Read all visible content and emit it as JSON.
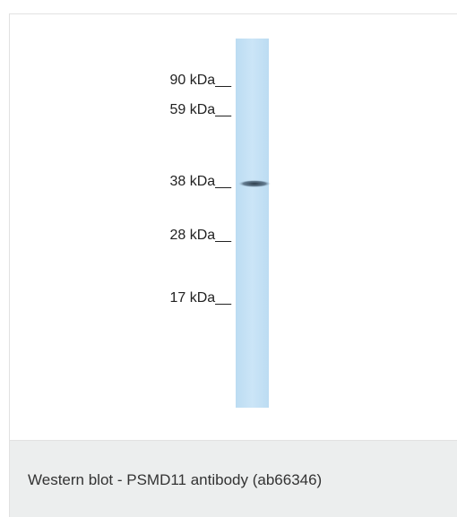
{
  "figure": {
    "markers": [
      "90 kDa__",
      "59 kDa__",
      "38 kDa__",
      "28 kDa__",
      "17 kDa__"
    ]
  },
  "caption": "Western blot - PSMD11 antibody (ab66346)"
}
